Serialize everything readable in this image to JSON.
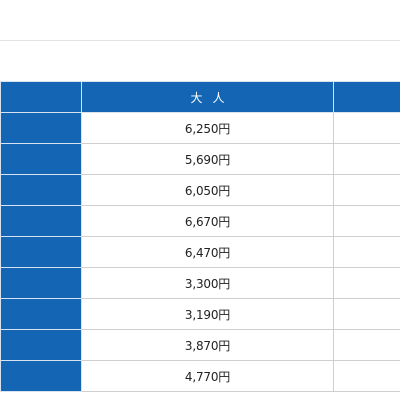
{
  "fare_table": {
    "columns": {
      "label": "",
      "adult": "大人",
      "next": ""
    },
    "rows": [
      {
        "label": "",
        "adult": "6,250円",
        "next": ""
      },
      {
        "label": "",
        "adult": "5,690円",
        "next": ""
      },
      {
        "label": "",
        "adult": "6,050円",
        "next": ""
      },
      {
        "label": "",
        "adult": "6,670円",
        "next": ""
      },
      {
        "label": "",
        "adult": "6,470円",
        "next": ""
      },
      {
        "label": "",
        "adult": "3,300円",
        "next": ""
      },
      {
        "label": "",
        "adult": "3,190円",
        "next": ""
      },
      {
        "label": "",
        "adult": "3,870円",
        "next": ""
      },
      {
        "label": "",
        "adult": "4,770円",
        "next": ""
      }
    ]
  },
  "colors": {
    "header_blue": "#1466b4",
    "border": "#cfcfcf",
    "text": "#222222"
  }
}
